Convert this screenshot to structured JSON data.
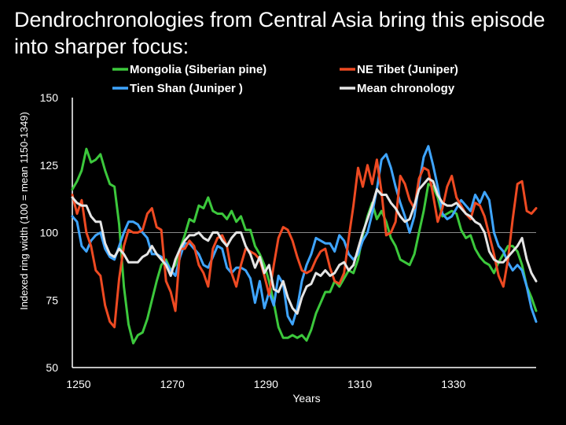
{
  "slide": {
    "title": "Dendrochronologies from Central Asia bring this episode into sharper focus:"
  },
  "chart_data": {
    "type": "line",
    "xlabel": "Years",
    "ylabel": "Indexed ring width (100 = mean 1150-1349)",
    "xlim": [
      1250,
      1349
    ],
    "ylim": [
      50,
      150
    ],
    "x_ticks": [
      1250,
      1270,
      1290,
      1310,
      1330
    ],
    "y_ticks": [
      50,
      75,
      100,
      125,
      150
    ],
    "reference_line": 100,
    "grid": false,
    "legend_position": "top",
    "series": [
      {
        "name": "Mongolia (Siberian pine)",
        "color": "#3cc83c",
        "x": [
          1250,
          1251,
          1252,
          1253,
          1254,
          1255,
          1256,
          1257,
          1258,
          1259,
          1260,
          1261,
          1262,
          1263,
          1264,
          1265,
          1266,
          1267,
          1268,
          1269,
          1270,
          1271,
          1272,
          1273,
          1274,
          1275,
          1276,
          1277,
          1278,
          1279,
          1280,
          1281,
          1282,
          1283,
          1284,
          1285,
          1286,
          1287,
          1288,
          1289,
          1290,
          1291,
          1292,
          1293,
          1294,
          1295,
          1296,
          1297,
          1298,
          1299,
          1300,
          1301,
          1302,
          1303,
          1304,
          1305,
          1306,
          1307,
          1308,
          1309,
          1310,
          1311,
          1312,
          1313,
          1314,
          1315,
          1316,
          1317,
          1318,
          1319,
          1320,
          1321,
          1322,
          1323,
          1324,
          1325,
          1326,
          1327,
          1328,
          1329,
          1330,
          1331,
          1332,
          1333,
          1334,
          1335,
          1336,
          1337,
          1338,
          1339,
          1340,
          1341,
          1342,
          1343,
          1344,
          1345,
          1346,
          1347,
          1348,
          1349
        ],
        "values": [
          116,
          119,
          123,
          131,
          126,
          127,
          129,
          123,
          118,
          117,
          103,
          80,
          66,
          59,
          62,
          63,
          68,
          75,
          82,
          88,
          90,
          86,
          88,
          94,
          99,
          105,
          104,
          110,
          109,
          113,
          108,
          107,
          107,
          105,
          108,
          104,
          106,
          101,
          101,
          95,
          92,
          88,
          82,
          74,
          65,
          61,
          61,
          62,
          61,
          62,
          60,
          64,
          70,
          74,
          78,
          78,
          82,
          80,
          83,
          86,
          85,
          90,
          99,
          106,
          111,
          105,
          108,
          104,
          98,
          95,
          90,
          89,
          88,
          92,
          100,
          108,
          118,
          117,
          113,
          106,
          107,
          108,
          107,
          101,
          98,
          99,
          94,
          91,
          89,
          88,
          85,
          89,
          92,
          95,
          95,
          93,
          88,
          80,
          76,
          71
        ]
      },
      {
        "name": "Tien Shan (Juniper )",
        "color": "#3fa5ff",
        "x": [
          1250,
          1251,
          1252,
          1253,
          1254,
          1255,
          1256,
          1257,
          1258,
          1259,
          1260,
          1261,
          1262,
          1263,
          1264,
          1265,
          1266,
          1267,
          1268,
          1269,
          1270,
          1271,
          1272,
          1273,
          1274,
          1275,
          1276,
          1277,
          1278,
          1279,
          1280,
          1281,
          1282,
          1283,
          1284,
          1285,
          1286,
          1287,
          1288,
          1289,
          1290,
          1291,
          1292,
          1293,
          1294,
          1295,
          1296,
          1297,
          1298,
          1299,
          1300,
          1301,
          1302,
          1303,
          1304,
          1305,
          1306,
          1307,
          1308,
          1309,
          1310,
          1311,
          1312,
          1313,
          1314,
          1315,
          1316,
          1317,
          1318,
          1319,
          1320,
          1321,
          1322,
          1323,
          1324,
          1325,
          1326,
          1327,
          1328,
          1329,
          1330,
          1331,
          1332,
          1333,
          1334,
          1335,
          1336,
          1337,
          1338,
          1339,
          1340,
          1341,
          1342,
          1343,
          1344,
          1345,
          1346,
          1347,
          1348,
          1349
        ],
        "values": [
          106,
          104,
          95,
          93,
          97,
          99,
          100,
          94,
          91,
          90,
          95,
          100,
          104,
          104,
          103,
          100,
          98,
          92,
          92,
          91,
          89,
          86,
          84,
          91,
          96,
          96,
          94,
          92,
          88,
          87,
          91,
          95,
          94,
          87,
          85,
          87,
          87,
          86,
          83,
          74,
          82,
          72,
          78,
          73,
          84,
          81,
          69,
          66,
          72,
          82,
          88,
          92,
          98,
          97,
          96,
          96,
          93,
          99,
          97,
          92,
          90,
          92,
          97,
          100,
          107,
          116,
          127,
          129,
          124,
          117,
          111,
          106,
          100,
          106,
          118,
          128,
          132,
          125,
          117,
          107,
          105,
          106,
          109,
          112,
          110,
          108,
          114,
          111,
          115,
          112,
          100,
          95,
          93,
          89,
          86,
          88,
          86,
          80,
          72,
          67
        ]
      },
      {
        "name": "NE Tibet (Juniper)",
        "color": "#ee4a22",
        "x": [
          1250,
          1251,
          1252,
          1253,
          1254,
          1255,
          1256,
          1257,
          1258,
          1259,
          1260,
          1261,
          1262,
          1263,
          1264,
          1265,
          1266,
          1267,
          1268,
          1269,
          1270,
          1271,
          1272,
          1273,
          1274,
          1275,
          1276,
          1277,
          1278,
          1279,
          1280,
          1281,
          1282,
          1283,
          1284,
          1285,
          1286,
          1287,
          1288,
          1289,
          1290,
          1291,
          1292,
          1293,
          1294,
          1295,
          1296,
          1297,
          1298,
          1299,
          1300,
          1301,
          1302,
          1303,
          1304,
          1305,
          1306,
          1307,
          1308,
          1309,
          1310,
          1311,
          1312,
          1313,
          1314,
          1315,
          1316,
          1317,
          1318,
          1319,
          1320,
          1321,
          1322,
          1323,
          1324,
          1325,
          1326,
          1327,
          1328,
          1329,
          1330,
          1331,
          1332,
          1333,
          1334,
          1335,
          1336,
          1337,
          1338,
          1339,
          1340,
          1341,
          1342,
          1343,
          1344,
          1345,
          1346,
          1347,
          1348,
          1349
        ],
        "values": [
          114,
          107,
          112,
          100,
          95,
          86,
          84,
          73,
          67,
          65,
          83,
          95,
          101,
          100,
          100,
          101,
          107,
          109,
          102,
          101,
          82,
          78,
          71,
          94,
          94,
          97,
          95,
          88,
          85,
          80,
          94,
          98,
          99,
          95,
          85,
          80,
          88,
          94,
          93,
          92,
          90,
          84,
          77,
          88,
          98,
          102,
          101,
          97,
          91,
          86,
          85,
          86,
          90,
          93,
          94,
          87,
          82,
          81,
          85,
          98,
          110,
          124,
          117,
          125,
          118,
          127,
          115,
          99,
          100,
          104,
          121,
          118,
          112,
          109,
          120,
          124,
          123,
          114,
          104,
          109,
          117,
          121,
          113,
          110,
          107,
          105,
          111,
          110,
          106,
          99,
          92,
          84,
          80,
          90,
          105,
          118,
          119,
          108,
          107,
          109
        ]
      },
      {
        "name": "Mean chronology",
        "color": "#e5e5e5",
        "x": [
          1250,
          1251,
          1252,
          1253,
          1254,
          1255,
          1256,
          1257,
          1258,
          1259,
          1260,
          1261,
          1262,
          1263,
          1264,
          1265,
          1266,
          1267,
          1268,
          1269,
          1270,
          1271,
          1272,
          1273,
          1274,
          1275,
          1276,
          1277,
          1278,
          1279,
          1280,
          1281,
          1282,
          1283,
          1284,
          1285,
          1286,
          1287,
          1288,
          1289,
          1290,
          1291,
          1292,
          1293,
          1294,
          1295,
          1296,
          1297,
          1298,
          1299,
          1300,
          1301,
          1302,
          1303,
          1304,
          1305,
          1306,
          1307,
          1308,
          1309,
          1310,
          1311,
          1312,
          1313,
          1314,
          1315,
          1316,
          1317,
          1318,
          1319,
          1320,
          1321,
          1322,
          1323,
          1324,
          1325,
          1326,
          1327,
          1328,
          1329,
          1330,
          1331,
          1332,
          1333,
          1334,
          1335,
          1336,
          1337,
          1338,
          1339,
          1340,
          1341,
          1342,
          1343,
          1344,
          1345,
          1346,
          1347,
          1348,
          1349
        ],
        "values": [
          113,
          111,
          110,
          110,
          106,
          104,
          104,
          96,
          92,
          91,
          94,
          92,
          89,
          89,
          89,
          91,
          92,
          95,
          92,
          90,
          88,
          84,
          90,
          94,
          97,
          99,
          99,
          100,
          98,
          97,
          100,
          100,
          97,
          95,
          98,
          100,
          100,
          95,
          92,
          87,
          91,
          85,
          88,
          79,
          78,
          82,
          76,
          72,
          70,
          76,
          80,
          81,
          85,
          84,
          86,
          84,
          85,
          88,
          89,
          86,
          88,
          94,
          100,
          105,
          110,
          116,
          114,
          114,
          111,
          109,
          106,
          104,
          105,
          110,
          116,
          118,
          120,
          119,
          114,
          111,
          110,
          110,
          111,
          109,
          107,
          106,
          104,
          103,
          100,
          93,
          90,
          89,
          89,
          91,
          93,
          95,
          98,
          90,
          85,
          82
        ]
      }
    ]
  }
}
